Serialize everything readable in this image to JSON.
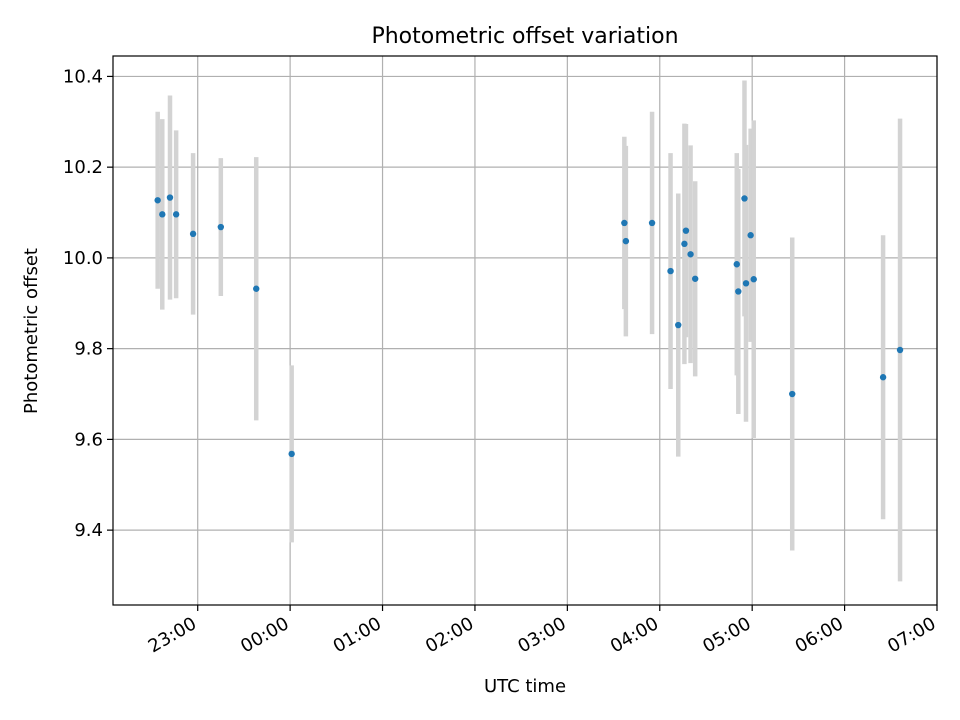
{
  "chart_data": {
    "type": "scatter",
    "title": "Photometric offset variation",
    "xlabel": "UTC time",
    "ylabel": "Photometric offset",
    "x_ticks": [
      "23:00",
      "00:00",
      "01:00",
      "02:00",
      "03:00",
      "04:00",
      "05:00",
      "06:00",
      "07:00"
    ],
    "y_ticks": [
      "9.4",
      "9.6",
      "9.8",
      "10.0",
      "10.2",
      "10.4"
    ],
    "xlim": [
      "22:05",
      "07:00"
    ],
    "ylim": [
      9.235,
      10.445
    ],
    "grid": true,
    "colors": {
      "marker": "#1f77b4",
      "errorbar": "#d3d3d3",
      "grid": "#b0b0b0"
    },
    "points": [
      {
        "time": "22:34",
        "y": 10.127,
        "err": 0.195
      },
      {
        "time": "22:37",
        "y": 10.096,
        "err": 0.21
      },
      {
        "time": "22:42",
        "y": 10.133,
        "err": 0.225
      },
      {
        "time": "22:46",
        "y": 10.096,
        "err": 0.185
      },
      {
        "time": "22:57",
        "y": 10.053,
        "err": 0.178
      },
      {
        "time": "23:15",
        "y": 10.068,
        "err": 0.152
      },
      {
        "time": "23:38",
        "y": 9.932,
        "err": 0.29
      },
      {
        "time": "00:01",
        "y": 9.568,
        "err": 0.195
      },
      {
        "time": "03:37",
        "y": 10.077,
        "err": 0.19
      },
      {
        "time": "03:38",
        "y": 10.037,
        "err": 0.21
      },
      {
        "time": "03:55",
        "y": 10.077,
        "err": 0.245
      },
      {
        "time": "04:07",
        "y": 9.971,
        "err": 0.26
      },
      {
        "time": "04:12",
        "y": 9.852,
        "err": 0.29
      },
      {
        "time": "04:16",
        "y": 10.031,
        "err": 0.265
      },
      {
        "time": "04:17",
        "y": 10.06,
        "err": 0.235
      },
      {
        "time": "04:20",
        "y": 10.008,
        "err": 0.24
      },
      {
        "time": "04:23",
        "y": 9.954,
        "err": 0.215
      },
      {
        "time": "04:50",
        "y": 9.986,
        "err": 0.245
      },
      {
        "time": "04:51",
        "y": 9.926,
        "err": 0.27
      },
      {
        "time": "04:55",
        "y": 10.131,
        "err": 0.26
      },
      {
        "time": "04:56",
        "y": 9.944,
        "err": 0.305
      },
      {
        "time": "04:59",
        "y": 10.05,
        "err": 0.235
      },
      {
        "time": "05:01",
        "y": 9.953,
        "err": 0.35
      },
      {
        "time": "05:26",
        "y": 9.7,
        "err": 0.345
      },
      {
        "time": "06:25",
        "y": 9.737,
        "err": 0.313
      },
      {
        "time": "06:36",
        "y": 9.797,
        "err": 0.51
      }
    ]
  }
}
